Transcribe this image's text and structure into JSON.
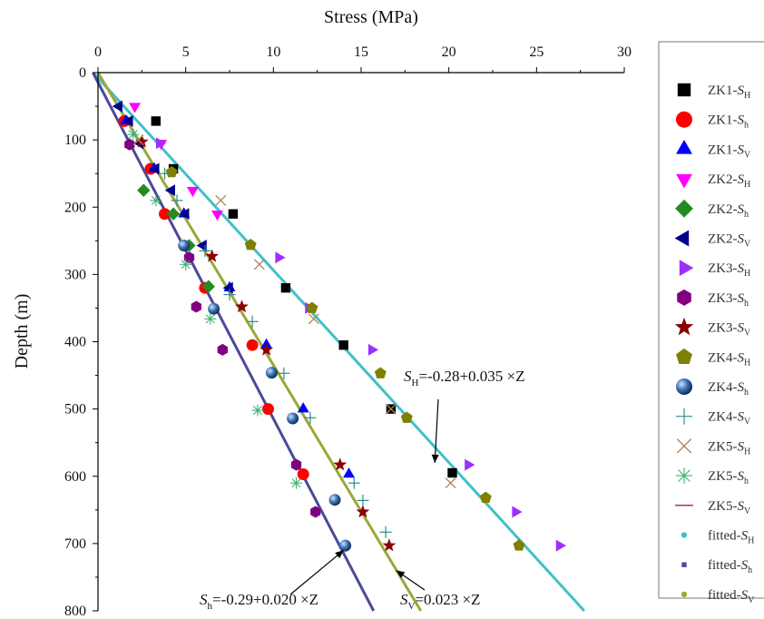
{
  "chart_data": {
    "type": "scatter",
    "xlabel": "Stress (MPa)",
    "ylabel": "Depth (m)",
    "xlim": [
      0,
      30
    ],
    "ylim": [
      0,
      800
    ],
    "x_axis_position": "top",
    "y_inverted": true,
    "grid": false,
    "legend_position": "right",
    "x_ticks": [
      "0",
      "5",
      "10",
      "15",
      "20",
      "25",
      "30"
    ],
    "y_ticks": [
      "0",
      "100",
      "200",
      "300",
      "400",
      "500",
      "600",
      "700",
      "800"
    ],
    "series": [
      {
        "name": "ZK1-S_H",
        "marker": "square",
        "color": "#000000",
        "points": [
          [
            3.3,
            72
          ],
          [
            4.3,
            143
          ],
          [
            7.7,
            210
          ],
          [
            10.7,
            320
          ],
          [
            14,
            405
          ],
          [
            16.7,
            500
          ],
          [
            20.2,
            595
          ]
        ]
      },
      {
        "name": "ZK1-S_h",
        "marker": "circle",
        "color": "#ff0000",
        "points": [
          [
            1.5,
            72
          ],
          [
            3,
            143
          ],
          [
            3.8,
            210
          ],
          [
            6.1,
            320
          ],
          [
            8.8,
            405
          ],
          [
            9.7,
            500
          ],
          [
            11.7,
            597
          ]
        ]
      },
      {
        "name": "ZK1-S_V",
        "marker": "triangle-up",
        "color": "#0000ff",
        "points": [
          [
            1.6,
            72
          ],
          [
            3.2,
            143
          ],
          [
            4.9,
            210
          ],
          [
            7.5,
            320
          ],
          [
            9.6,
            405
          ],
          [
            11.7,
            500
          ],
          [
            14.3,
            597
          ]
        ]
      },
      {
        "name": "ZK2-S_H",
        "marker": "triangle-down",
        "color": "#ff00ff",
        "points": [
          [
            2.1,
            50
          ],
          [
            3.6,
            105
          ],
          [
            5.4,
            175
          ],
          [
            6.8,
            210
          ]
        ]
      },
      {
        "name": "ZK2-S_h",
        "marker": "diamond",
        "color": "#228b22",
        "points": [
          [
            2.6,
            175
          ],
          [
            4.3,
            210
          ],
          [
            5.2,
            257
          ],
          [
            6.3,
            318
          ]
        ]
      },
      {
        "name": "ZK2-S_V",
        "marker": "triangle-left",
        "color": "#00008b",
        "points": [
          [
            1.2,
            50
          ],
          [
            1.8,
            72
          ],
          [
            2.4,
            105
          ],
          [
            3.3,
            143
          ],
          [
            4.2,
            175
          ],
          [
            5,
            210
          ],
          [
            6,
            257
          ],
          [
            7.5,
            320
          ]
        ]
      },
      {
        "name": "ZK3-S_H",
        "marker": "triangle-right",
        "color": "#9b30ff",
        "points": [
          [
            3.5,
            105
          ],
          [
            10.3,
            275
          ],
          [
            12,
            350
          ],
          [
            15.6,
            412
          ],
          [
            21.1,
            583
          ],
          [
            23.8,
            653
          ],
          [
            26.3,
            703
          ]
        ]
      },
      {
        "name": "ZK3-S_h",
        "marker": "hexagon",
        "color": "#800080",
        "points": [
          [
            1.8,
            107
          ],
          [
            5.2,
            275
          ],
          [
            5.6,
            348
          ],
          [
            7.1,
            412
          ],
          [
            11.3,
            583
          ],
          [
            12.4,
            653
          ]
        ]
      },
      {
        "name": "ZK3-S_V",
        "marker": "star",
        "color": "#8b0000",
        "points": [
          [
            2.5,
            103
          ],
          [
            6.5,
            273
          ],
          [
            8.2,
            348
          ],
          [
            9.6,
            412
          ],
          [
            13.8,
            583
          ],
          [
            15.1,
            653
          ],
          [
            16.6,
            703
          ]
        ]
      },
      {
        "name": "ZK4-S_H",
        "marker": "pentagon",
        "color": "#808000",
        "points": [
          [
            4.2,
            148
          ],
          [
            8.7,
            256
          ],
          [
            12.2,
            350
          ],
          [
            16.1,
            447
          ],
          [
            17.6,
            513
          ],
          [
            22.1,
            632
          ],
          [
            24,
            703
          ]
        ]
      },
      {
        "name": "ZK4-S_h",
        "marker": "sphere",
        "color": "#3a70b0",
        "points": [
          [
            4.9,
            257
          ],
          [
            6.6,
            351
          ],
          [
            9.9,
            446
          ],
          [
            11.1,
            514
          ],
          [
            13.5,
            635
          ],
          [
            14.1,
            703
          ]
        ]
      },
      {
        "name": "ZK4-S_V",
        "marker": "plus",
        "color": "#2e8b8b",
        "points": [
          [
            3.8,
            150
          ],
          [
            4.5,
            190
          ],
          [
            6.1,
            265
          ],
          [
            7.5,
            330
          ],
          [
            8.8,
            370
          ],
          [
            10.6,
            447
          ],
          [
            12.1,
            513
          ],
          [
            14.6,
            610
          ],
          [
            15.1,
            636
          ],
          [
            16.4,
            683
          ]
        ]
      },
      {
        "name": "ZK5-S_H",
        "marker": "x",
        "color": "#b08050",
        "points": [
          [
            2.3,
            100
          ],
          [
            7,
            190
          ],
          [
            9.2,
            285
          ],
          [
            12.3,
            366
          ],
          [
            16.7,
            500
          ],
          [
            20.1,
            610
          ]
        ]
      },
      {
        "name": "ZK5-S_h",
        "marker": "asterisk",
        "color": "#3cb371",
        "points": [
          [
            2,
            92
          ],
          [
            3.3,
            190
          ],
          [
            5,
            285
          ],
          [
            6.4,
            366
          ],
          [
            9.1,
            502
          ],
          [
            11.3,
            610
          ]
        ]
      },
      {
        "name": "ZK5-S_V",
        "marker": "dash",
        "color": "#b03060",
        "points": []
      },
      {
        "name": "fitted-S_H",
        "marker": "dot",
        "color": "#40c0c8",
        "line": {
          "intercept": -0.28,
          "slope": 0.035,
          "from": 0,
          "to": 800
        }
      },
      {
        "name": "fitted-S_h",
        "marker": "smallsquare",
        "color": "#4a4a9a",
        "line": {
          "intercept": -0.29,
          "slope": 0.02,
          "from": 0,
          "to": 800
        }
      },
      {
        "name": "fitted-S_V",
        "marker": "dot",
        "color": "#9aa83a",
        "line": {
          "intercept": 0,
          "slope": 0.023,
          "from": 0,
          "to": 800
        }
      }
    ],
    "legend_labels": [
      {
        "prefix": "ZK1-",
        "sym": "S",
        "sub": "H"
      },
      {
        "prefix": "ZK1-",
        "sym": "S",
        "sub": "h"
      },
      {
        "prefix": "ZK1-",
        "sym": "S",
        "sub": "V"
      },
      {
        "prefix": "ZK2-",
        "sym": "S",
        "sub": "H"
      },
      {
        "prefix": "ZK2-",
        "sym": "S",
        "sub": "h"
      },
      {
        "prefix": "ZK2-",
        "sym": "S",
        "sub": "V"
      },
      {
        "prefix": "ZK3-",
        "sym": "S",
        "sub": "H"
      },
      {
        "prefix": "ZK3-",
        "sym": "S",
        "sub": "h"
      },
      {
        "prefix": "ZK3-",
        "sym": "S",
        "sub": "V"
      },
      {
        "prefix": "ZK4-",
        "sym": "S",
        "sub": "H"
      },
      {
        "prefix": "ZK4-",
        "sym": "S",
        "sub": "h"
      },
      {
        "prefix": "ZK4-",
        "sym": "S",
        "sub": "V"
      },
      {
        "prefix": "ZK5-",
        "sym": "S",
        "sub": "H"
      },
      {
        "prefix": "ZK5-",
        "sym": "S",
        "sub": "h"
      },
      {
        "prefix": "ZK5-",
        "sym": "S",
        "sub": "V"
      },
      {
        "prefix": "fitted-",
        "sym": "S",
        "sub": "H"
      },
      {
        "prefix": "fitted-",
        "sym": "S",
        "sub": "h"
      },
      {
        "prefix": "fitted-",
        "sym": "S",
        "sub": "V"
      }
    ],
    "annotations": [
      {
        "sym": "S",
        "sub": "H",
        "text": "=-0.28+0.035 ×Z",
        "arrow_to": [
          19.2,
          580
        ]
      },
      {
        "sym": "S",
        "sub": "h",
        "text": "=-0.29+0.020 ×Z",
        "arrow_to": [
          14,
          710
        ]
      },
      {
        "sym": "S",
        "sub": "V",
        "text": "=0.023 ×Z",
        "arrow_to": [
          17,
          740
        ]
      }
    ]
  }
}
